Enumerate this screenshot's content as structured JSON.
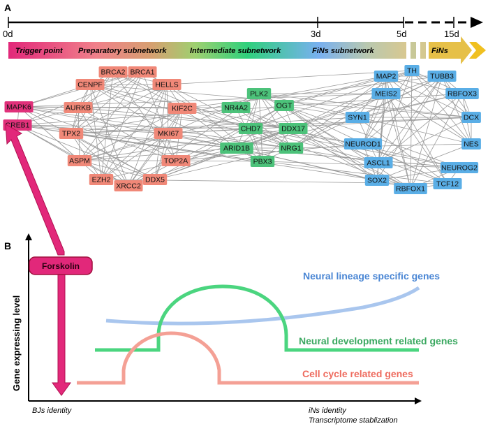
{
  "panels": {
    "a": "A",
    "b": "B"
  },
  "timeline": {
    "ticks": [
      "0d",
      "3d",
      "5d",
      "15d"
    ],
    "stages": [
      "Trigger point",
      "Preparatory subnetwork",
      "Intermediate  subnetwork",
      "FiNs subnetwork",
      "FiNs"
    ]
  },
  "network": {
    "trigger_nodes": [
      "MAPK6",
      "CREB1"
    ],
    "preparatory_nodes": [
      "BRCA2",
      "BRCA1",
      "CENPF",
      "HELLS",
      "AURKB",
      "KIF2C",
      "TPX2",
      "MKI67",
      "ASPM",
      "TOP2A",
      "EZH2",
      "XRCC2",
      "DDX5"
    ],
    "intermediate_nodes": [
      "PLK2",
      "NR4A2",
      "OGT",
      "CHD7",
      "DDX17",
      "ARID1B",
      "NRG1",
      "PBX3"
    ],
    "fins_nodes": [
      "TH",
      "MAP2",
      "TUBB3",
      "MEIS2",
      "RBFOX3",
      "SYN1",
      "DCX",
      "NEUROD1",
      "NES",
      "ASCL1",
      "NEUROG2",
      "SOX2",
      "TCF12",
      "RBFOX1"
    ],
    "colors": {
      "trigger": "#e0307a",
      "preparatory": "#f08878",
      "intermediate": "#4cc27a",
      "fins": "#5aaee6",
      "edge": "#9a9a9a"
    }
  },
  "panel_b": {
    "treatment": "Forskolin",
    "y_axis": "Gene expressing level",
    "x_start": "BJs identity",
    "x_end_line1": "iNs identity",
    "x_end_line2": "Transcriptome stablization",
    "curves": [
      {
        "name": "Neural lineage specific genes",
        "color": "#4a86d4",
        "line_color": "#a9c6ee"
      },
      {
        "name": "Neural development related genes",
        "color": "#3aa860",
        "line_color": "#4bd57f"
      },
      {
        "name": "Cell cycle related genes",
        "color": "#ee6b5e",
        "line_color": "#f4a095"
      }
    ]
  }
}
